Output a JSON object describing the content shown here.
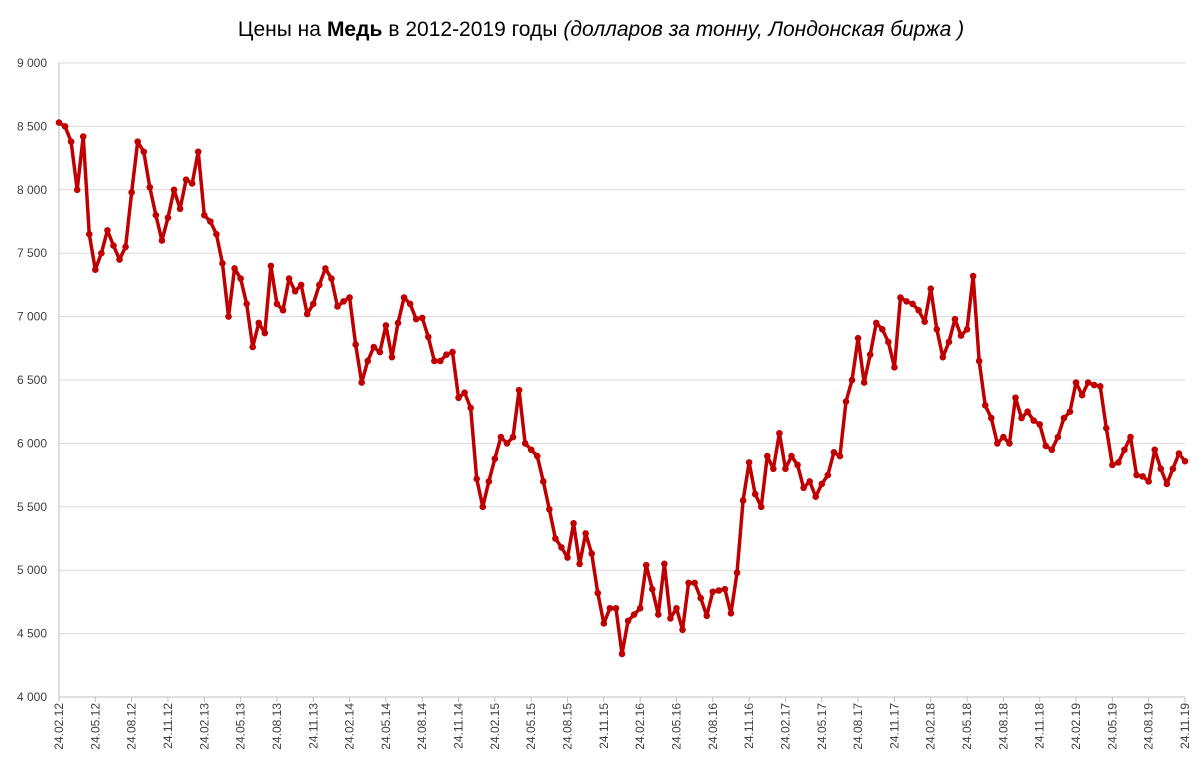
{
  "chart_data": {
    "type": "line",
    "title": [
      "Цены на",
      "Медь",
      "в 2012-2019 годы",
      "(долларов за тонну, Лондонская биржа )"
    ],
    "categories": [
      "24.02.12",
      null,
      null,
      null,
      null,
      null,
      "24.05.12",
      null,
      null,
      null,
      null,
      null,
      "24.08.12",
      null,
      null,
      null,
      null,
      null,
      "24.11.12",
      null,
      null,
      null,
      null,
      null,
      "24.02.13",
      null,
      null,
      null,
      null,
      null,
      "24.05.13",
      null,
      null,
      null,
      null,
      null,
      "24.08.13",
      null,
      null,
      null,
      null,
      null,
      "24.11.13",
      null,
      null,
      null,
      null,
      null,
      "24.02.14",
      null,
      null,
      null,
      null,
      null,
      "24.05.14",
      null,
      null,
      null,
      null,
      null,
      "24.08.14",
      null,
      null,
      null,
      null,
      null,
      "24.11.14",
      null,
      null,
      null,
      null,
      null,
      "24.02.15",
      null,
      null,
      null,
      null,
      null,
      "24.05.15",
      null,
      null,
      null,
      null,
      null,
      "24.08.15",
      null,
      null,
      null,
      null,
      null,
      "24.11.15",
      null,
      null,
      null,
      null,
      null,
      "24.02.16",
      null,
      null,
      null,
      null,
      null,
      "24.05.16",
      null,
      null,
      null,
      null,
      null,
      "24.08.16",
      null,
      null,
      null,
      null,
      null,
      "24.11.16",
      null,
      null,
      null,
      null,
      null,
      "24.02.17",
      null,
      null,
      null,
      null,
      null,
      "24.05.17",
      null,
      null,
      null,
      null,
      null,
      "24.08.17",
      null,
      null,
      null,
      null,
      null,
      "24.11.17",
      null,
      null,
      null,
      null,
      null,
      "24.02.18",
      null,
      null,
      null,
      null,
      null,
      "24.05.18",
      null,
      null,
      null,
      null,
      null,
      "24.08.18",
      null,
      null,
      null,
      null,
      null,
      "24.11.18",
      null,
      null,
      null,
      null,
      null,
      "24.02.19",
      null,
      null,
      null,
      null,
      null,
      "24.05.19",
      null,
      null,
      null,
      null,
      null,
      "24.08.19",
      null,
      null,
      null,
      null,
      null,
      "24.11.19"
    ],
    "series": [
      {
        "color": "#c00000",
        "values": [
          8530,
          8500,
          8380,
          8000,
          8420,
          7650,
          7370,
          7500,
          7680,
          7560,
          7450,
          7550,
          7980,
          8380,
          8300,
          8020,
          7800,
          7600,
          7780,
          8000,
          7850,
          8080,
          8050,
          8300,
          7800,
          7750,
          7650,
          7420,
          7000,
          7380,
          7300,
          7100,
          6760,
          6950,
          6870,
          7400,
          7100,
          7050,
          7300,
          7200,
          7250,
          7020,
          7100,
          7250,
          7380,
          7300,
          7080,
          7120,
          7150,
          6780,
          6480,
          6650,
          6760,
          6720,
          6930,
          6680,
          6950,
          7150,
          7100,
          6980,
          6990,
          6840,
          6650,
          6650,
          6700,
          6720,
          6360,
          6400,
          6280,
          5720,
          5500,
          5700,
          5880,
          6050,
          6000,
          6050,
          6420,
          6000,
          5950,
          5900,
          5700,
          5480,
          5250,
          5180,
          5100,
          5370,
          5050,
          5290,
          5130,
          4820,
          4580,
          4700,
          4700,
          4340,
          4600,
          4650,
          4700,
          5040,
          4850,
          4650,
          5050,
          4620,
          4700,
          4530,
          4900,
          4900,
          4780,
          4640,
          4830,
          4840,
          4850,
          4660,
          4980,
          5550,
          5850,
          5600,
          5500,
          5900,
          5800,
          6080,
          5800,
          5900,
          5830,
          5650,
          5700,
          5580,
          5680,
          5750,
          5930,
          5900,
          6330,
          6500,
          6830,
          6480,
          6700,
          6950,
          6900,
          6800,
          6600,
          7150,
          7120,
          7100,
          7050,
          6960,
          7220,
          6900,
          6680,
          6800,
          6980,
          6850,
          6900,
          7320,
          6650,
          6300,
          6200,
          6000,
          6050,
          6000,
          6360,
          6200,
          6250,
          6180,
          6150,
          5980,
          5950,
          6050,
          6200,
          6250,
          6480,
          6380,
          6480,
          6460,
          6450,
          6120,
          5830,
          5850,
          5950,
          6050,
          5750,
          5740,
          5700,
          5950,
          5800,
          5680,
          5800,
          5920,
          5860
        ]
      }
    ],
    "ylim": [
      4000,
      9000
    ],
    "yticks": [
      {
        "value": 4000,
        "label": "4 000"
      },
      {
        "value": 4500,
        "label": "4 500"
      },
      {
        "value": 5000,
        "label": "5 000"
      },
      {
        "value": 5500,
        "label": "5 500"
      },
      {
        "value": 6000,
        "label": "6 000"
      },
      {
        "value": 6500,
        "label": "6 500"
      },
      {
        "value": 7000,
        "label": "7 000"
      },
      {
        "value": 7500,
        "label": "7 500"
      },
      {
        "value": 8000,
        "label": "8 000"
      },
      {
        "value": 8500,
        "label": "8 500"
      },
      {
        "value": 9000,
        "label": "9 000"
      }
    ],
    "grid": true
  }
}
